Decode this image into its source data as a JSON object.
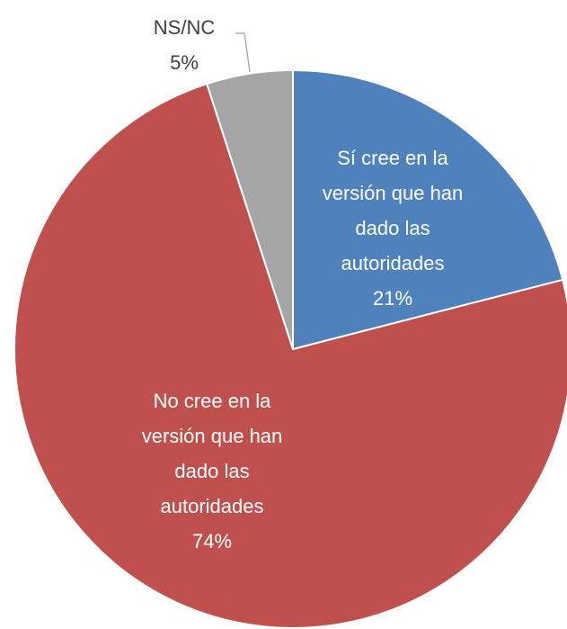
{
  "chart_data": {
    "type": "pie",
    "categories": [
      "Sí cree en la versión que han dado las autoridades",
      "No cree en la versión que han dado las autoridades",
      "NS/NC"
    ],
    "values": [
      21,
      74,
      5
    ],
    "value_labels": [
      "21%",
      "74%",
      "5%"
    ],
    "colors": [
      "#4f81bd",
      "#c0504d",
      "#a5a5a5"
    ]
  }
}
